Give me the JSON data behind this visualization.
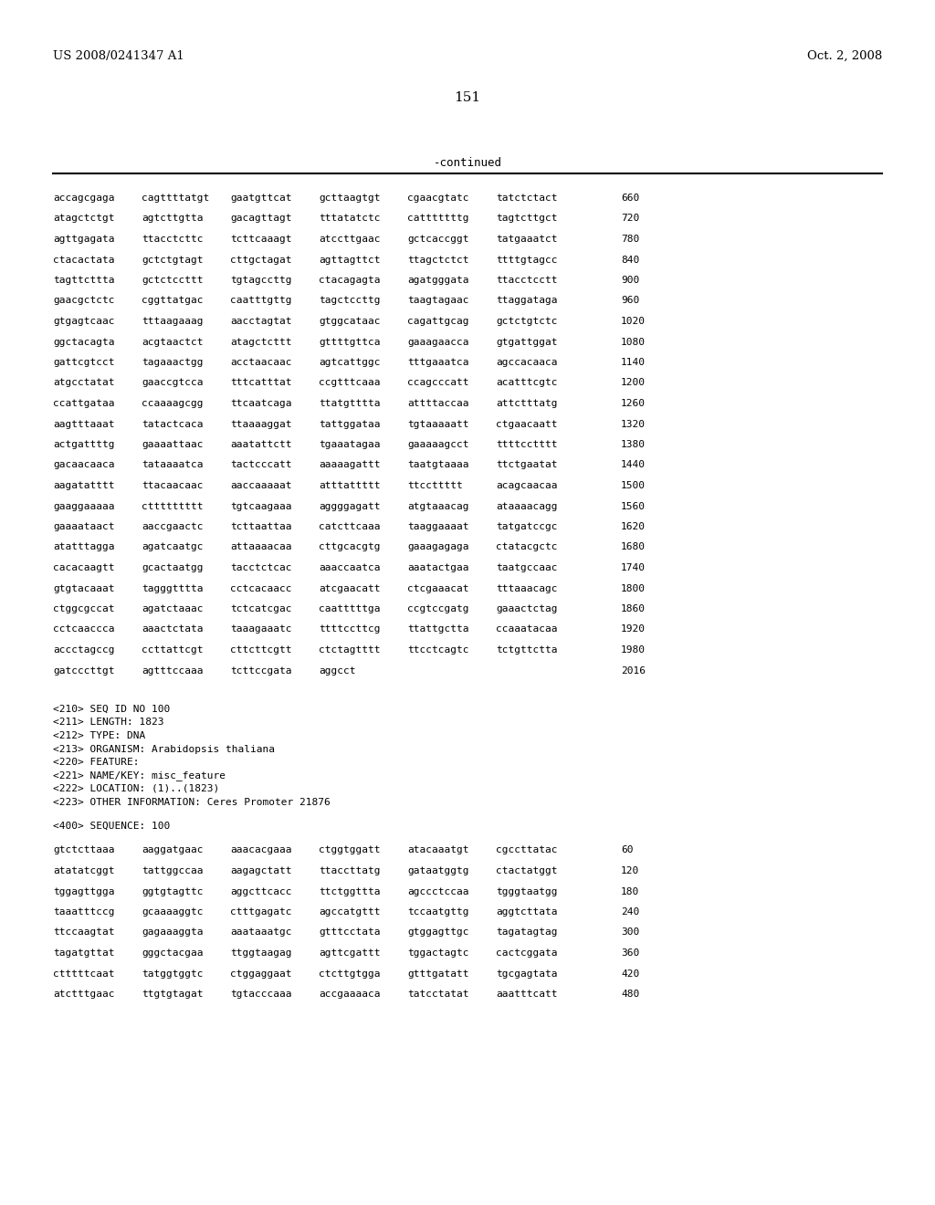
{
  "page_number": "151",
  "patent_number": "US 2008/0241347 A1",
  "patent_date": "Oct. 2, 2008",
  "continued_label": "-continued",
  "background_color": "#ffffff",
  "text_color": "#000000",
  "sequence_lines_top": [
    [
      "accagcgaga",
      "cagttttatgt",
      "gaatgttcat",
      "gcttaagtgt",
      "cgaacgtatc",
      "tatctctact",
      "660"
    ],
    [
      "atagctctgt",
      "agtcttgtta",
      "gacagttagt",
      "tttatatctc",
      "catttttttg",
      "tagtcttgct",
      "720"
    ],
    [
      "agttgagata",
      "ttacctcttc",
      "tcttcaaagt",
      "atccttgaac",
      "gctcaccggt",
      "tatgaaatct",
      "780"
    ],
    [
      "ctacactata",
      "gctctgtagt",
      "cttgctagat",
      "agttagttct",
      "ttagctctct",
      "ttttgtagcc",
      "840"
    ],
    [
      "tagttcttta",
      "gctctccttt",
      "tgtagccttg",
      "ctacagagta",
      "agatgggata",
      "ttacctcctt",
      "900"
    ],
    [
      "gaacgctctc",
      "cggttatgac",
      "caatttgttg",
      "tagctccttg",
      "taagtagaac",
      "ttaggataga",
      "960"
    ],
    [
      "gtgagtcaac",
      "tttaagaaag",
      "aacctagtat",
      "gtggcataac",
      "cagattgcag",
      "gctctgtctc",
      "1020"
    ],
    [
      "ggctacagta",
      "acgtaactct",
      "atagctcttt",
      "gttttgttca",
      "gaaagaacca",
      "gtgattggat",
      "1080"
    ],
    [
      "gattcgtcct",
      "tagaaactgg",
      "acctaacaac",
      "agtcattggc",
      "tttgaaatca",
      "agccacaaca",
      "1140"
    ],
    [
      "atgcctatat",
      "gaaccgtcca",
      "tttcatttat",
      "ccgtttcaaa",
      "ccagcccatt",
      "acatttcgtc",
      "1200"
    ],
    [
      "ccattgataa",
      "ccaaaagcgg",
      "ttcaatcaga",
      "ttatgtttta",
      "attttaccaa",
      "attctttatg",
      "1260"
    ],
    [
      "aagtttaaat",
      "tatactcaca",
      "ttaaaaggat",
      "tattggataa",
      "tgtaaaaatt",
      "ctgaacaatt",
      "1320"
    ],
    [
      "actgattttg",
      "gaaaattaac",
      "aaatattctt",
      "tgaaatagaa",
      "gaaaaagcct",
      "ttttcctttt",
      "1380"
    ],
    [
      "gacaacaaca",
      "tataaaatca",
      "tactcccatt",
      "aaaaagattt",
      "taatgtaaaa",
      "ttctgaatat",
      "1440"
    ],
    [
      "aagatatttt",
      "ttacaacaac",
      "aaccaaaaat",
      "atttattttt",
      "ttccttttt",
      "acagcaacaa",
      "1500"
    ],
    [
      "gaaggaaaaa",
      "cttttttttt",
      "tgtcaagaaa",
      "aggggagatt",
      "atgtaaacag",
      "ataaaacagg",
      "1560"
    ],
    [
      "gaaaataact",
      "aaccgaactc",
      "tcttaattaa",
      "catcttcaaa",
      "taaggaaaat",
      "tatgatccgc",
      "1620"
    ],
    [
      "atatttagga",
      "agatcaatgc",
      "attaaaacaa",
      "cttgcacgtg",
      "gaaagagaga",
      "ctatacgctc",
      "1680"
    ],
    [
      "cacacaagtt",
      "gcactaatgg",
      "tacctctcac",
      "aaaccaatca",
      "aaatactgaa",
      "taatgccaac",
      "1740"
    ],
    [
      "gtgtacaaat",
      "tagggtttta",
      "cctcacaacc",
      "atcgaacatt",
      "ctcgaaacat",
      "tttaaacagc",
      "1800"
    ],
    [
      "ctggcgccat",
      "agatctaaac",
      "tctcatcgac",
      "caatttttga",
      "ccgtccgatg",
      "gaaactctag",
      "1860"
    ],
    [
      "cctcaaccca",
      "aaactctata",
      "taaagaaatc",
      "ttttccttcg",
      "ttattgctta",
      "ccaaatacaa",
      "1920"
    ],
    [
      "accctagccg",
      "ccttattcgt",
      "cttcttcgtt",
      "ctctagtttt",
      "ttcctcagtc",
      "tctgttctta",
      "1980"
    ],
    [
      "gatcccttgt",
      "agtttccaaa",
      "tcttccgata",
      "aggcct",
      "",
      "",
      "2016"
    ]
  ],
  "metadata_lines": [
    "<210> SEQ ID NO 100",
    "<211> LENGTH: 1823",
    "<212> TYPE: DNA",
    "<213> ORGANISM: Arabidopsis thaliana",
    "<220> FEATURE:",
    "<221> NAME/KEY: misc_feature",
    "<222> LOCATION: (1)..(1823)",
    "<223> OTHER INFORMATION: Ceres Promoter 21876"
  ],
  "sequence_label": "<400> SEQUENCE: 100",
  "sequence_lines_bottom": [
    [
      "gtctcttaaa",
      "aaggatgaac",
      "aaacacgaaa",
      "ctggtggatt",
      "atacaaatgt",
      "cgccttatac",
      "60"
    ],
    [
      "atatatcggt",
      "tattggccaa",
      "aagagctatt",
      "ttaccttatg",
      "gataatggtg",
      "ctactatggt",
      "120"
    ],
    [
      "tggagttgga",
      "ggtgtagttc",
      "aggcttcacc",
      "ttctggttta",
      "agccctccaa",
      "tgggtaatgg",
      "180"
    ],
    [
      "taaatttccg",
      "gcaaaaggtc",
      "ctttgagatc",
      "agccatgttt",
      "tccaatgttg",
      "aggtcttata",
      "240"
    ],
    [
      "ttccaagtat",
      "gagaaaggta",
      "aaataaatgc",
      "gtttcctata",
      "gtggagttgc",
      "tagatagtag",
      "300"
    ],
    [
      "tagatgttat",
      "gggctacgaa",
      "ttggtaagag",
      "agttcgattt",
      "tggactagtc",
      "cactcggata",
      "360"
    ],
    [
      "ctttttcaat",
      "tatggtggtc",
      "ctggaggaat",
      "ctcttgtgga",
      "gtttgatatt",
      "tgcgagtata",
      "420"
    ],
    [
      "atctttgaac",
      "ttgtgtagat",
      "tgtacccaaa",
      "accgaaaaca",
      "tatcctatat",
      "aaatttcatt",
      "480"
    ]
  ]
}
